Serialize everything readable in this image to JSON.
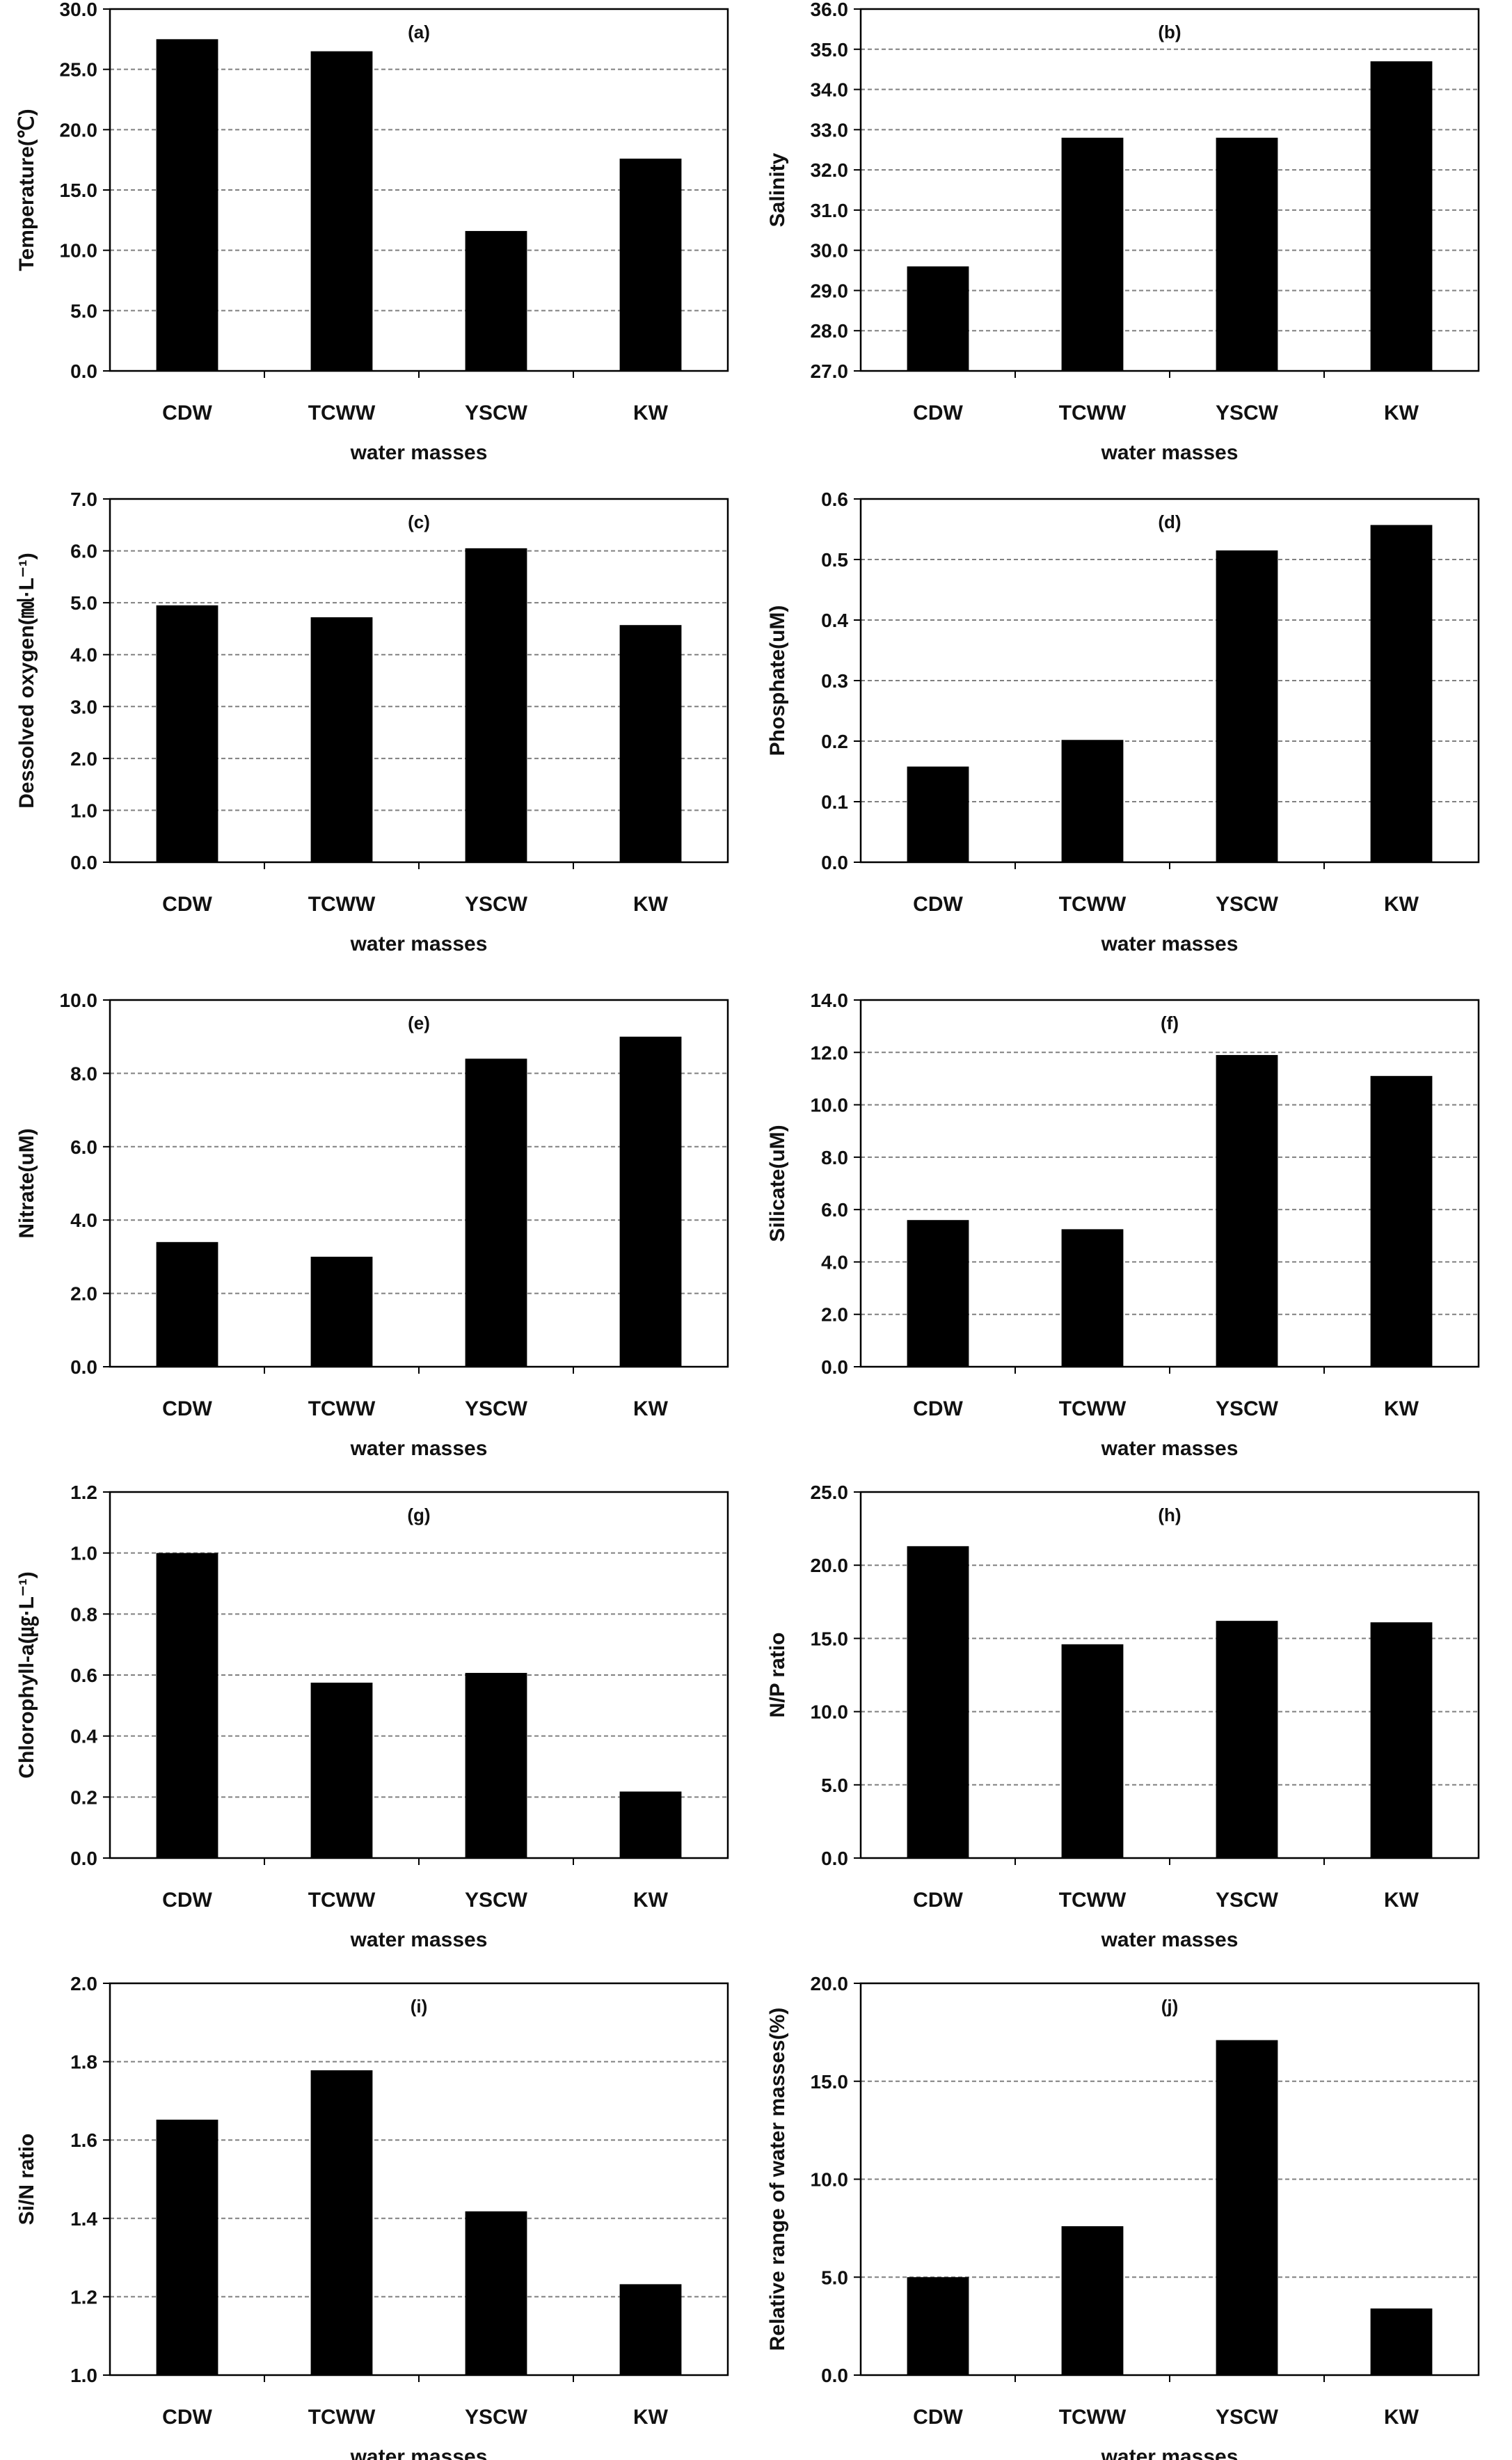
{
  "colors": {
    "bar": "#000000",
    "axis": "#000000",
    "grid": "#808080"
  },
  "chart_data": [
    {
      "id": "a",
      "type": "bar",
      "tag": "(a)",
      "categories": [
        "CDW",
        "TCWW",
        "YSCW",
        "KW"
      ],
      "values": [
        27.5,
        26.5,
        11.6,
        17.6
      ],
      "xlabel": "water masses",
      "ylabel": "Temperature(℃)",
      "ylim": [
        0,
        30
      ],
      "ticks": [
        "0.0",
        "5.0",
        "10.0",
        "15.0",
        "20.0",
        "25.0",
        "30.0"
      ],
      "grid": true,
      "legend": "none"
    },
    {
      "id": "b",
      "type": "bar",
      "tag": "(b)",
      "categories": [
        "CDW",
        "TCWW",
        "YSCW",
        "KW"
      ],
      "values": [
        29.6,
        32.8,
        32.8,
        34.7
      ],
      "xlabel": "water masses",
      "ylabel": "Salinity",
      "ylim": [
        27,
        36
      ],
      "ticks": [
        "27.0",
        "28.0",
        "29.0",
        "30.0",
        "31.0",
        "32.0",
        "33.0",
        "34.0",
        "35.0",
        "36.0"
      ],
      "grid": true,
      "legend": "none"
    },
    {
      "id": "c",
      "type": "bar",
      "tag": "(c)",
      "categories": [
        "CDW",
        "TCWW",
        "YSCW",
        "KW"
      ],
      "values": [
        4.95,
        4.72,
        6.05,
        4.57
      ],
      "xlabel": "water masses",
      "ylabel": "Dessolved oxygen(㏖·L⁻¹)",
      "ylim": [
        0,
        7
      ],
      "ticks": [
        "0.0",
        "1.0",
        "2.0",
        "3.0",
        "4.0",
        "5.0",
        "6.0",
        "7.0"
      ],
      "grid": true,
      "legend": "none"
    },
    {
      "id": "d",
      "type": "bar",
      "tag": "(d)",
      "categories": [
        "CDW",
        "TCWW",
        "YSCW",
        "KW"
      ],
      "values": [
        0.158,
        0.202,
        0.515,
        0.557
      ],
      "xlabel": "water masses",
      "ylabel": "Phosphate(uM)",
      "ylim": [
        0,
        0.6
      ],
      "ticks": [
        "0.0",
        "0.1",
        "0.2",
        "0.3",
        "0.4",
        "0.5",
        "0.6"
      ],
      "grid": true,
      "legend": "none"
    },
    {
      "id": "e",
      "type": "bar",
      "tag": "(e)",
      "categories": [
        "CDW",
        "TCWW",
        "YSCW",
        "KW"
      ],
      "values": [
        3.4,
        3.0,
        8.4,
        9.0
      ],
      "xlabel": "water masses",
      "ylabel": "Nitrate(uM)",
      "ylim": [
        0,
        10
      ],
      "ticks": [
        "0.0",
        "2.0",
        "4.0",
        "6.0",
        "8.0",
        "10.0"
      ],
      "grid": true,
      "legend": "none"
    },
    {
      "id": "f",
      "type": "bar",
      "tag": "(f)",
      "categories": [
        "CDW",
        "TCWW",
        "YSCW",
        "KW"
      ],
      "values": [
        5.6,
        5.25,
        11.9,
        11.1
      ],
      "xlabel": "water masses",
      "ylabel": "Silicate(uM)",
      "ylim": [
        0,
        14
      ],
      "ticks": [
        "0.0",
        "2.0",
        "4.0",
        "6.0",
        "8.0",
        "10.0",
        "12.0",
        "14.0"
      ],
      "grid": true,
      "legend": "none"
    },
    {
      "id": "g",
      "type": "bar",
      "tag": "(g)",
      "categories": [
        "CDW",
        "TCWW",
        "YSCW",
        "KW"
      ],
      "values": [
        1.0,
        0.575,
        0.607,
        0.218
      ],
      "xlabel": "water masses",
      "ylabel": "Chlorophyll-a(㎍·L⁻¹)",
      "ylim": [
        0,
        1.2
      ],
      "ticks": [
        "0.0",
        "0.2",
        "0.4",
        "0.6",
        "0.8",
        "1.0",
        "1.2"
      ],
      "grid": true,
      "legend": "none"
    },
    {
      "id": "h",
      "type": "bar",
      "tag": "(h)",
      "categories": [
        "CDW",
        "TCWW",
        "YSCW",
        "KW"
      ],
      "values": [
        21.3,
        14.6,
        16.2,
        16.1
      ],
      "xlabel": "water masses",
      "ylabel": "N/P ratio",
      "ylim": [
        0,
        25
      ],
      "ticks": [
        "0.0",
        "5.0",
        "10.0",
        "15.0",
        "20.0",
        "25.0"
      ],
      "grid": true,
      "legend": "none"
    },
    {
      "id": "i",
      "type": "bar",
      "tag": "(i)",
      "categories": [
        "CDW",
        "TCWW",
        "YSCW",
        "KW"
      ],
      "values": [
        1.652,
        1.778,
        1.418,
        1.232
      ],
      "xlabel": "water masses",
      "ylabel": "Si/N ratio",
      "ylim": [
        1.0,
        2.0
      ],
      "ticks": [
        "1.0",
        "1.2",
        "1.4",
        "1.6",
        "1.8",
        "2.0"
      ],
      "grid": true,
      "legend": "none"
    },
    {
      "id": "j",
      "type": "bar",
      "tag": "(j)",
      "categories": [
        "CDW",
        "TCWW",
        "YSCW",
        "KW"
      ],
      "values": [
        5.0,
        7.6,
        17.1,
        3.4
      ],
      "xlabel": "water masses",
      "ylabel": "Relative range of water masses(%)",
      "ylim": [
        0,
        20
      ],
      "ticks": [
        "0.0",
        "5.0",
        "10.0",
        "15.0",
        "20.0"
      ],
      "grid": true,
      "legend": "none"
    }
  ]
}
